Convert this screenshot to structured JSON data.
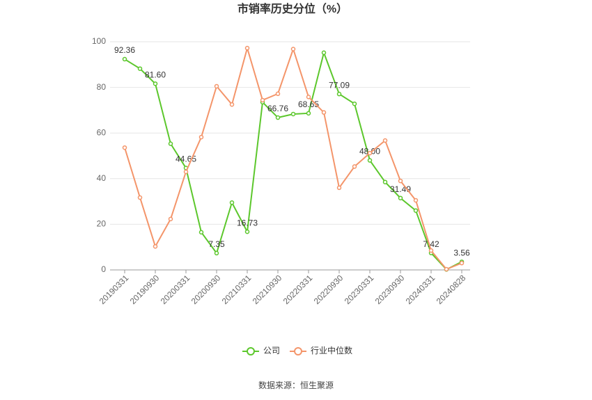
{
  "chart_data": {
    "type": "line",
    "title": "市销率历史分位（%）",
    "categories": [
      "20190331",
      null,
      "20190930",
      null,
      "20200331",
      null,
      "20200930",
      null,
      "20210331",
      null,
      "20210930",
      null,
      "20220331",
      null,
      "20220930",
      null,
      "20230331",
      null,
      "20230930",
      null,
      "20240331",
      null,
      "20240828"
    ],
    "series": [
      {
        "name": "公司",
        "color": "#5cc72c",
        "values": [
          92.36,
          88.2,
          81.6,
          55.3,
          44.65,
          16.5,
          7.35,
          29.5,
          16.73,
          73.5,
          66.76,
          68.3,
          68.65,
          95.2,
          77.09,
          72.8,
          48.0,
          38.5,
          31.49,
          26.0,
          7.42,
          0.2,
          3.56
        ],
        "value_labels": [
          "92.36",
          null,
          "81.60",
          null,
          "44.65",
          null,
          "7.35",
          null,
          "16.73",
          null,
          "66.76",
          null,
          "68.65",
          null,
          "77.09",
          null,
          "48.00",
          null,
          "31.49",
          null,
          "7.42",
          null,
          "3.56"
        ]
      },
      {
        "name": "行业中位数",
        "color": "#f4956a",
        "values": [
          53.6,
          31.7,
          10.3,
          22.3,
          43.0,
          58.2,
          80.5,
          72.5,
          97.2,
          74.4,
          77.2,
          96.8,
          75.8,
          69.0,
          36.0,
          45.3,
          51.2,
          56.7,
          39.0,
          30.5,
          8.5,
          0.3,
          3.0
        ]
      }
    ],
    "ylim": [
      0,
      100
    ],
    "yticks": [
      0,
      20,
      40,
      60,
      80,
      100
    ],
    "grid": true,
    "source": "数据来源：恒生聚源"
  }
}
